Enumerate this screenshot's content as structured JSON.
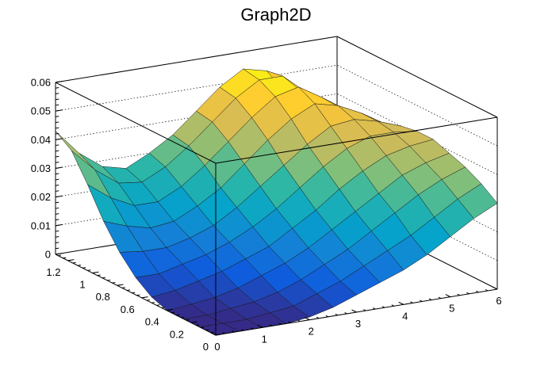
{
  "chart_data": {
    "type": "surface",
    "title": "Graph2D",
    "x": {
      "label": "",
      "range": [
        0,
        6
      ],
      "ticks": [
        "0",
        "1",
        "2",
        "3",
        "4",
        "5",
        "6"
      ]
    },
    "y": {
      "label": "",
      "range": [
        0,
        1.3
      ],
      "ticks": [
        "0",
        "0.2",
        "0.4",
        "0.6",
        "0.8",
        "1",
        "1.2"
      ]
    },
    "z": {
      "label": "",
      "range": [
        0,
        0.06
      ],
      "ticks": [
        "0",
        "0.01",
        "0.02",
        "0.03",
        "0.04",
        "0.05",
        "0.06"
      ]
    },
    "grid": true,
    "palette": [
      "#352a87",
      "#0f5cdd",
      "#1481d6",
      "#06a4ca",
      "#2eb7a4",
      "#87bf77",
      "#d1bb59",
      "#fec832",
      "#f9fb0e"
    ],
    "surface_y": [
      0,
      0.13,
      0.26,
      0.39,
      0.52,
      0.65,
      0.78,
      0.91,
      1.04,
      1.17,
      1.3
    ],
    "surface_x": [
      0,
      0.5,
      1,
      1.5,
      2,
      2.5,
      3,
      3.5,
      4,
      4.5,
      5,
      5.5,
      6
    ],
    "surface_z": [
      [
        0.0,
        0.0,
        0.0,
        0.0,
        0.001,
        0.003,
        0.006,
        0.009,
        0.012,
        0.016,
        0.021,
        0.026,
        0.03
      ],
      [
        0.0,
        0.0,
        0.0,
        0.001,
        0.002,
        0.005,
        0.008,
        0.012,
        0.016,
        0.02,
        0.025,
        0.03,
        0.034
      ],
      [
        0.0,
        0.0,
        0.001,
        0.002,
        0.004,
        0.007,
        0.011,
        0.015,
        0.02,
        0.025,
        0.03,
        0.034,
        0.037
      ],
      [
        0.0,
        0.001,
        0.002,
        0.004,
        0.007,
        0.01,
        0.014,
        0.019,
        0.024,
        0.029,
        0.034,
        0.037,
        0.039
      ],
      [
        0.002,
        0.003,
        0.005,
        0.007,
        0.01,
        0.013,
        0.018,
        0.023,
        0.029,
        0.034,
        0.038,
        0.04,
        0.041
      ],
      [
        0.006,
        0.006,
        0.008,
        0.01,
        0.013,
        0.017,
        0.022,
        0.028,
        0.034,
        0.039,
        0.042,
        0.042,
        0.041
      ],
      [
        0.012,
        0.011,
        0.011,
        0.013,
        0.016,
        0.021,
        0.027,
        0.033,
        0.039,
        0.044,
        0.045,
        0.043,
        0.04
      ],
      [
        0.02,
        0.017,
        0.015,
        0.016,
        0.02,
        0.025,
        0.032,
        0.039,
        0.045,
        0.049,
        0.047,
        0.043,
        0.038
      ],
      [
        0.03,
        0.024,
        0.02,
        0.02,
        0.024,
        0.03,
        0.037,
        0.044,
        0.05,
        0.052,
        0.047,
        0.041,
        0.035
      ],
      [
        0.039,
        0.031,
        0.025,
        0.024,
        0.028,
        0.034,
        0.041,
        0.048,
        0.053,
        0.053,
        0.045,
        0.037,
        0.031
      ],
      [
        0.043,
        0.034,
        0.028,
        0.026,
        0.03,
        0.035,
        0.042,
        0.049,
        0.054,
        0.052,
        0.041,
        0.033,
        0.028
      ]
    ]
  }
}
